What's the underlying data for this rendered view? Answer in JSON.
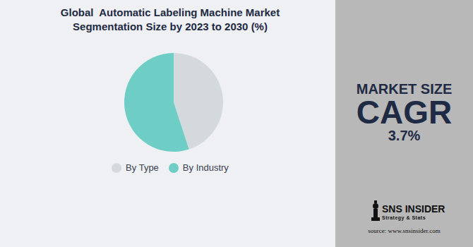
{
  "chart_data": {
    "type": "pie",
    "title": "Global  Automatic Labeling Machine Market Segmentation Size by 2023 to 2030 (%)",
    "categories": [
      "By Type",
      "By Industry"
    ],
    "values": [
      45,
      55
    ],
    "colors": [
      "#d4d9de",
      "#6ecdc4"
    ],
    "legend": "bottom"
  },
  "side_panel": {
    "heading": "MARKET SIZE",
    "metric": "CAGR",
    "cagr": {
      "value": 3.7,
      "label": "3.7%"
    }
  },
  "logo": {
    "name": "SNS INSIDER",
    "tagline": "Strategy & Stats"
  },
  "source": "source: www.snsinsider.com"
}
